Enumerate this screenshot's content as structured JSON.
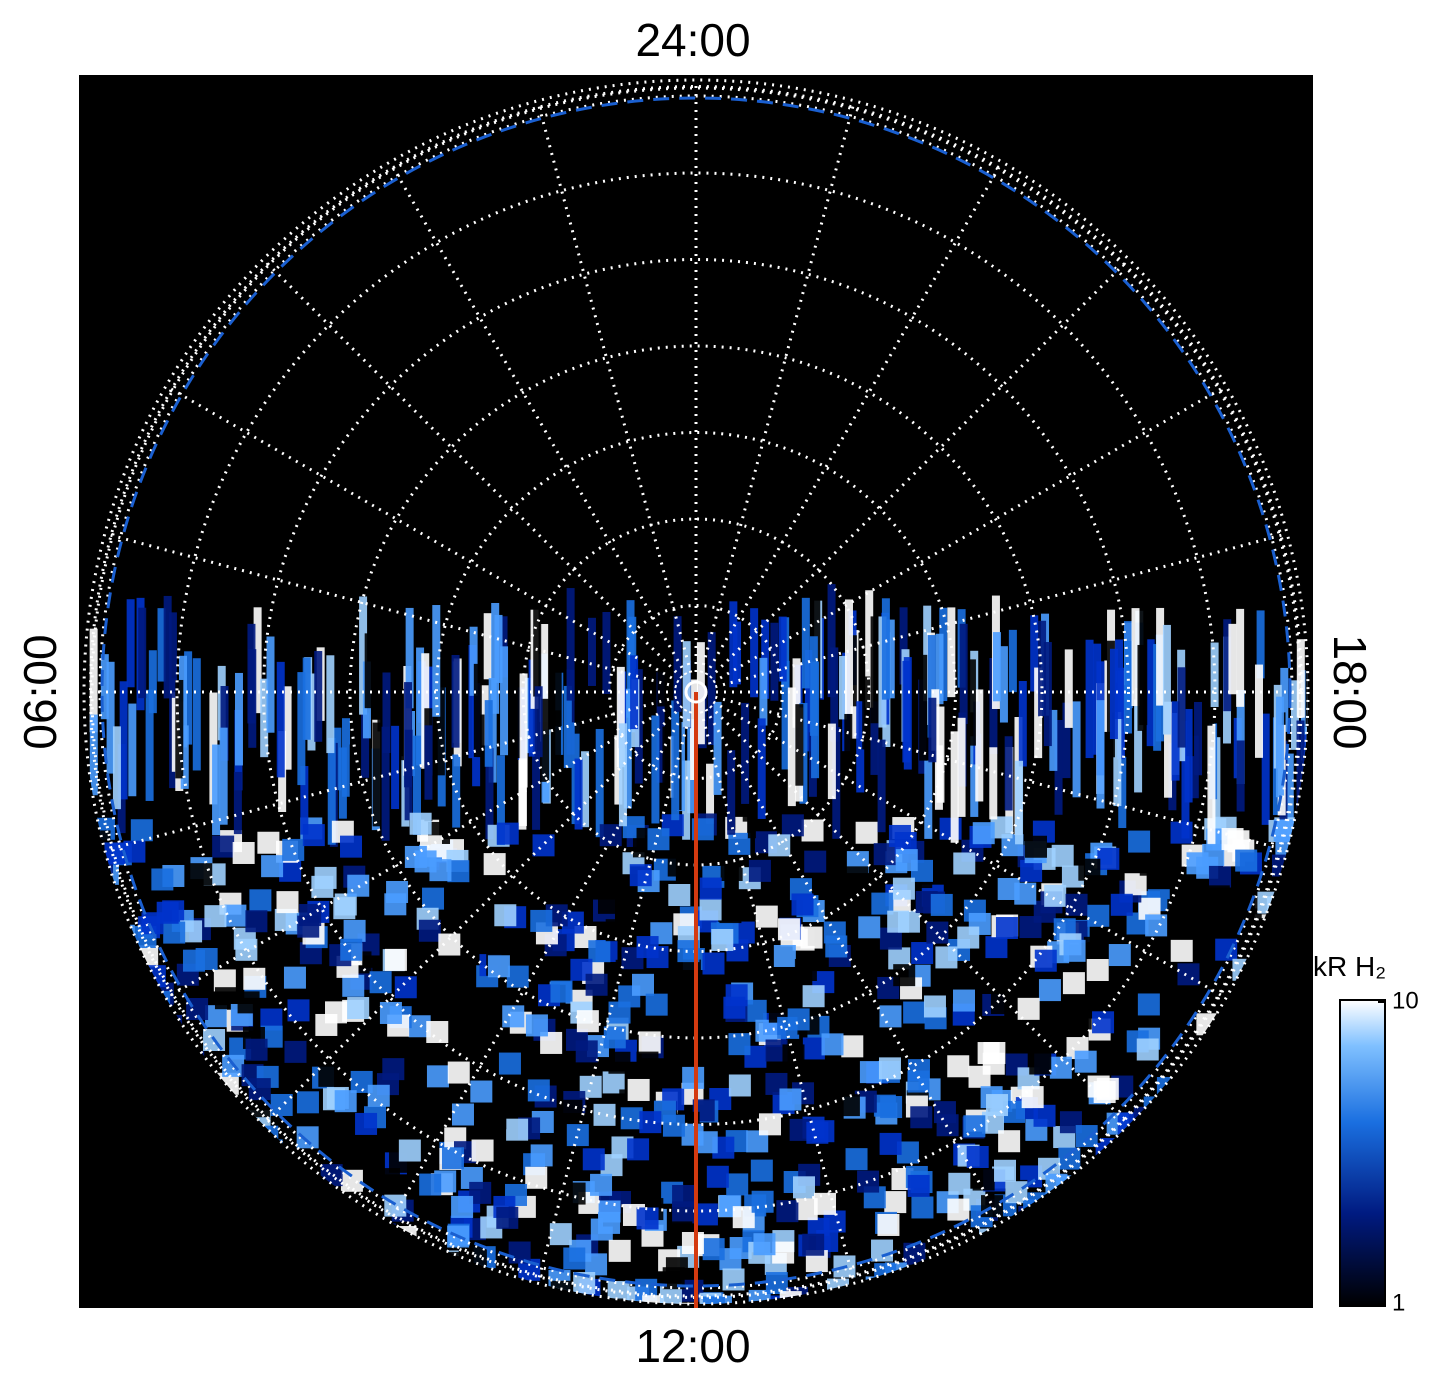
{
  "chart_data": {
    "type": "polar",
    "time_labels": {
      "top": "24:00",
      "bottom": "12:00",
      "left": "06:00",
      "right": "18:00"
    },
    "colorbar": {
      "label": "kR H₂",
      "ylim": [
        1,
        10
      ],
      "yticks": [
        1,
        10
      ],
      "log_scale": true
    }
  }
}
